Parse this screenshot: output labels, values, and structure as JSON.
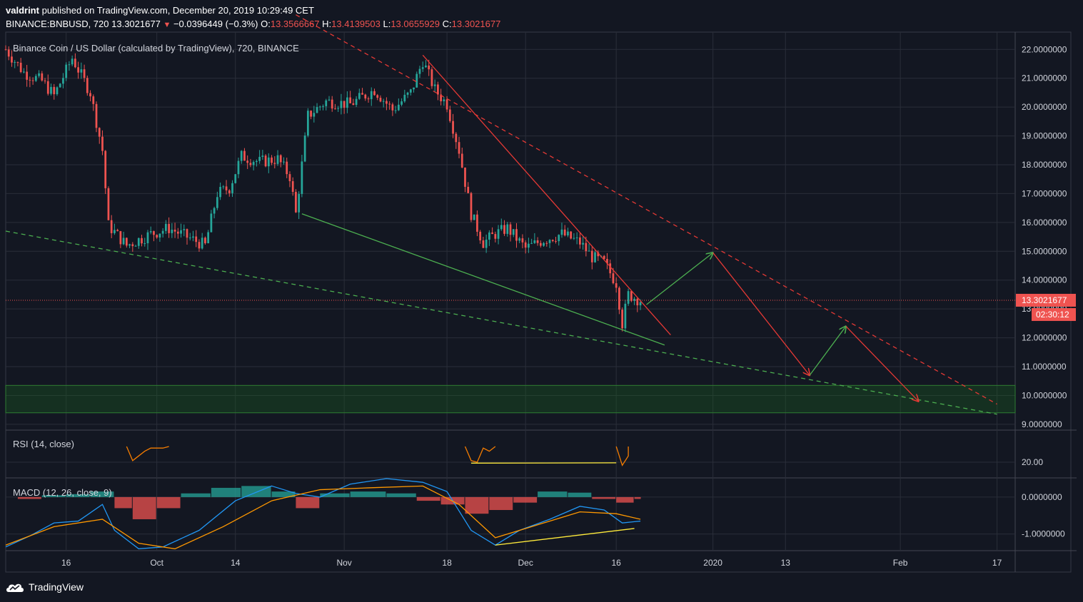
{
  "header": {
    "author": "valdrint",
    "published": "published on TradingView.com, December 20, 2019 10:29:49 CET",
    "symbol": "BINANCE:BNBUSD, 720",
    "last": "13.3021677",
    "change_arrow": "▼",
    "change": "−0.0396449 (−0.3%)",
    "o_label": "O:",
    "o_value": "13.3566667",
    "h_label": "H:",
    "h_value": "13.4139503",
    "l_label": "L:",
    "l_value": "13.0655929",
    "c_label": "C:",
    "c_value": "13.3021677"
  },
  "brand": {
    "name": "TradingView",
    "icon": "tradingview-cloud-icon"
  },
  "colors": {
    "background": "#131722",
    "grid": "#2a2e39",
    "up": "#26a69a",
    "down": "#ef5350",
    "trend_red": "#e53935",
    "trend_green": "#4caf50",
    "arrow_green": "#4caf50",
    "rsi_line": "#f57c00",
    "divergence": "#ffeb3b",
    "zone": "#1b5e20",
    "macd_line": "#2196f3",
    "signal_line": "#ff9800"
  },
  "chart_data": [
    {
      "type": "candlestick",
      "title": "Binance Coin / US Dollar (calculated by TradingView), 720, BINANCE",
      "ylim": [
        8.8,
        22.6
      ],
      "y_ticks": [
        "22.0000000",
        "21.0000000",
        "20.0000000",
        "19.0000000",
        "18.0000000",
        "17.0000000",
        "16.0000000",
        "15.0000000",
        "14.0000000",
        "13.0000000",
        "12.0000000",
        "11.0000000",
        "10.0000000",
        "9.0000000"
      ],
      "y_tick_values": [
        22,
        21,
        20,
        19,
        18,
        17,
        16,
        15,
        14,
        13,
        12,
        11,
        10,
        9
      ],
      "x_ticks": [
        {
          "label": "16",
          "date": "2019-09-16"
        },
        {
          "label": "Oct",
          "date": "2019-10-01"
        },
        {
          "label": "14",
          "date": "2019-10-14"
        },
        {
          "label": "Nov",
          "date": "2019-11-01"
        },
        {
          "label": "18",
          "date": "2019-11-18"
        },
        {
          "label": "Dec",
          "date": "2019-12-01"
        },
        {
          "label": "16",
          "date": "2019-12-16"
        },
        {
          "label": "2020",
          "date": "2020-01-01"
        },
        {
          "label": "13",
          "date": "2020-01-13"
        },
        {
          "label": "Feb",
          "date": "2020-02-01"
        },
        {
          "label": "17",
          "date": "2020-02-17"
        }
      ],
      "xlim": [
        "2019-09-06",
        "2020-02-20"
      ],
      "last_price_label": "13.3021677",
      "countdown_label": "02:30:12",
      "last_price": 13.3021677,
      "path_closes": [
        {
          "date": "2019-09-06",
          "close": 22.0
        },
        {
          "date": "2019-09-09",
          "close": 21.2
        },
        {
          "date": "2019-09-12",
          "close": 20.9
        },
        {
          "date": "2019-09-14",
          "close": 20.4
        },
        {
          "date": "2019-09-17",
          "close": 21.7
        },
        {
          "date": "2019-09-20",
          "close": 20.5
        },
        {
          "date": "2019-09-22",
          "close": 18.5
        },
        {
          "date": "2019-09-23",
          "close": 15.9
        },
        {
          "date": "2019-09-26",
          "close": 15.2
        },
        {
          "date": "2019-09-30",
          "close": 15.6
        },
        {
          "date": "2019-10-03",
          "close": 15.8
        },
        {
          "date": "2019-10-06",
          "close": 15.5
        },
        {
          "date": "2019-10-09",
          "close": 15.2
        },
        {
          "date": "2019-10-11",
          "close": 17.0
        },
        {
          "date": "2019-10-13",
          "close": 17.2
        },
        {
          "date": "2019-10-15",
          "close": 18.3
        },
        {
          "date": "2019-10-18",
          "close": 18.1
        },
        {
          "date": "2019-10-21",
          "close": 18.2
        },
        {
          "date": "2019-10-23",
          "close": 17.6
        },
        {
          "date": "2019-10-24",
          "close": 16.3
        },
        {
          "date": "2019-10-26",
          "close": 19.7
        },
        {
          "date": "2019-10-29",
          "close": 20.2
        },
        {
          "date": "2019-11-02",
          "close": 20.1
        },
        {
          "date": "2019-11-06",
          "close": 20.6
        },
        {
          "date": "2019-11-09",
          "close": 19.9
        },
        {
          "date": "2019-11-12",
          "close": 20.5
        },
        {
          "date": "2019-11-14",
          "close": 21.6
        },
        {
          "date": "2019-11-16",
          "close": 20.6
        },
        {
          "date": "2019-11-18",
          "close": 20.1
        },
        {
          "date": "2019-11-20",
          "close": 18.5
        },
        {
          "date": "2019-11-22",
          "close": 16.3
        },
        {
          "date": "2019-11-24",
          "close": 15.3
        },
        {
          "date": "2019-11-26",
          "close": 15.6
        },
        {
          "date": "2019-11-28",
          "close": 15.8
        },
        {
          "date": "2019-12-01",
          "close": 15.1
        },
        {
          "date": "2019-12-04",
          "close": 15.4
        },
        {
          "date": "2019-12-07",
          "close": 15.6
        },
        {
          "date": "2019-12-10",
          "close": 15.3
        },
        {
          "date": "2019-12-12",
          "close": 14.8
        },
        {
          "date": "2019-12-14",
          "close": 14.6
        },
        {
          "date": "2019-12-16",
          "close": 13.9
        },
        {
          "date": "2019-12-17",
          "close": 12.5
        },
        {
          "date": "2019-12-18",
          "close": 13.5
        },
        {
          "date": "2019-12-20",
          "close": 13.3
        }
      ],
      "support_zone": {
        "low": 9.4,
        "high": 10.35
      },
      "lines": [
        {
          "name": "upper-trend-dashed",
          "style": "dashed",
          "color": "#e53935",
          "from": {
            "date": "2019-10-24",
            "value": 23.2
          },
          "to": {
            "date": "2020-02-17",
            "value": 9.7
          }
        },
        {
          "name": "upper-trend-solid",
          "style": "solid",
          "color": "#e53935",
          "from": {
            "date": "2019-11-14",
            "value": 21.8
          },
          "to": {
            "date": "2019-12-25",
            "value": 12.1
          }
        },
        {
          "name": "lower-trend-solid",
          "style": "solid",
          "color": "#4caf50",
          "from": {
            "date": "2019-10-25",
            "value": 16.3
          },
          "to": {
            "date": "2019-12-24",
            "value": 11.75
          }
        },
        {
          "name": "lower-trend-dashed",
          "style": "dashed",
          "color": "#4caf50",
          "from": {
            "date": "2019-09-06",
            "value": 15.7
          },
          "to": {
            "date": "2020-02-17",
            "value": 9.35
          }
        }
      ],
      "projection_arrows": [
        {
          "color": "#4caf50",
          "from": {
            "date": "2019-12-21",
            "value": 13.15
          },
          "to": {
            "date": "2020-01-01",
            "value": 14.95
          }
        },
        {
          "color": "#e53935",
          "from": {
            "date": "2020-01-01",
            "value": 14.95
          },
          "to": {
            "date": "2020-01-17",
            "value": 10.7
          }
        },
        {
          "color": "#4caf50",
          "from": {
            "date": "2020-01-17",
            "value": 10.7
          },
          "to": {
            "date": "2020-01-23",
            "value": 12.4
          }
        },
        {
          "color": "#e53935",
          "from": {
            "date": "2020-01-23",
            "value": 12.4
          },
          "to": {
            "date": "2020-02-04",
            "value": 9.8
          }
        }
      ]
    },
    {
      "type": "line",
      "title": "RSI (14, close)",
      "y_ticks": [
        "20.00"
      ],
      "y_tick_values": [
        20
      ],
      "ylim": [
        10,
        40
      ],
      "series": [
        {
          "points": [
            {
              "date": "2019-09-26",
              "value": 30
            },
            {
              "date": "2019-09-27",
              "value": 21
            },
            {
              "date": "2019-09-28",
              "value": 24
            },
            {
              "date": "2019-09-29",
              "value": 27
            },
            {
              "date": "2019-09-30",
              "value": 29
            },
            {
              "date": "2019-10-02",
              "value": 29
            },
            {
              "date": "2019-10-03",
              "value": 30
            }
          ]
        },
        {
          "points": [
            {
              "date": "2019-11-21",
              "value": 30
            },
            {
              "date": "2019-11-22",
              "value": 21
            },
            {
              "date": "2019-11-23",
              "value": 20
            },
            {
              "date": "2019-11-24",
              "value": 29
            },
            {
              "date": "2019-11-25",
              "value": 27
            },
            {
              "date": "2019-11-26",
              "value": 30
            }
          ]
        },
        {
          "points": [
            {
              "date": "2019-12-16",
              "value": 30
            },
            {
              "date": "2019-12-17",
              "value": 18
            },
            {
              "date": "2019-12-18",
              "value": 24
            },
            {
              "date": "2019-12-18",
              "value": 30
            }
          ]
        }
      ],
      "divergence": {
        "from": {
          "date": "2019-11-22",
          "value": 19.4
        },
        "to": {
          "date": "2019-12-16",
          "value": 19.6
        }
      }
    },
    {
      "type": "bar",
      "title": "MACD (12, 26, close, 9)",
      "y_ticks": [
        "0.0000000",
        "-1.0000000"
      ],
      "y_tick_values": [
        0,
        -1
      ],
      "ylim": [
        -1.45,
        0.5
      ],
      "macd": [
        {
          "date": "2019-09-06",
          "value": -1.35
        },
        {
          "date": "2019-09-10",
          "value": -1.05
        },
        {
          "date": "2019-09-14",
          "value": -0.7
        },
        {
          "date": "2019-09-18",
          "value": -0.65
        },
        {
          "date": "2019-09-22",
          "value": -0.2
        },
        {
          "date": "2019-09-24",
          "value": -0.9
        },
        {
          "date": "2019-09-28",
          "value": -1.4
        },
        {
          "date": "2019-10-02",
          "value": -1.35
        },
        {
          "date": "2019-10-08",
          "value": -0.9
        },
        {
          "date": "2019-10-14",
          "value": -0.1
        },
        {
          "date": "2019-10-20",
          "value": 0.3
        },
        {
          "date": "2019-10-24",
          "value": 0.1
        },
        {
          "date": "2019-10-28",
          "value": 0.0
        },
        {
          "date": "2019-11-02",
          "value": 0.35
        },
        {
          "date": "2019-11-08",
          "value": 0.5
        },
        {
          "date": "2019-11-14",
          "value": 0.4
        },
        {
          "date": "2019-11-18",
          "value": 0.15
        },
        {
          "date": "2019-11-22",
          "value": -0.9
        },
        {
          "date": "2019-11-26",
          "value": -1.3
        },
        {
          "date": "2019-11-30",
          "value": -0.9
        },
        {
          "date": "2019-12-05",
          "value": -0.6
        },
        {
          "date": "2019-12-10",
          "value": -0.25
        },
        {
          "date": "2019-12-14",
          "value": -0.35
        },
        {
          "date": "2019-12-17",
          "value": -0.7
        },
        {
          "date": "2019-12-20",
          "value": -0.65
        }
      ],
      "signal": [
        {
          "date": "2019-09-06",
          "value": -1.3
        },
        {
          "date": "2019-09-14",
          "value": -0.8
        },
        {
          "date": "2019-09-22",
          "value": -0.6
        },
        {
          "date": "2019-09-28",
          "value": -1.25
        },
        {
          "date": "2019-10-04",
          "value": -1.4
        },
        {
          "date": "2019-10-12",
          "value": -0.8
        },
        {
          "date": "2019-10-20",
          "value": -0.1
        },
        {
          "date": "2019-10-28",
          "value": 0.2
        },
        {
          "date": "2019-11-05",
          "value": 0.25
        },
        {
          "date": "2019-11-14",
          "value": 0.3
        },
        {
          "date": "2019-11-20",
          "value": -0.2
        },
        {
          "date": "2019-11-26",
          "value": -1.1
        },
        {
          "date": "2019-12-02",
          "value": -0.8
        },
        {
          "date": "2019-12-10",
          "value": -0.4
        },
        {
          "date": "2019-12-16",
          "value": -0.45
        },
        {
          "date": "2019-12-20",
          "value": -0.6
        }
      ],
      "histogram": [
        {
          "date": "2019-09-08",
          "value": -0.05
        },
        {
          "date": "2019-09-12",
          "value": 0.05
        },
        {
          "date": "2019-09-16",
          "value": 0.08
        },
        {
          "date": "2019-09-20",
          "value": 0.15
        },
        {
          "date": "2019-09-24",
          "value": -0.3
        },
        {
          "date": "2019-09-27",
          "value": -0.6
        },
        {
          "date": "2019-10-01",
          "value": -0.3
        },
        {
          "date": "2019-10-05",
          "value": 0.1
        },
        {
          "date": "2019-10-10",
          "value": 0.25
        },
        {
          "date": "2019-10-15",
          "value": 0.3
        },
        {
          "date": "2019-10-20",
          "value": 0.15
        },
        {
          "date": "2019-10-24",
          "value": -0.3
        },
        {
          "date": "2019-10-28",
          "value": 0.1
        },
        {
          "date": "2019-11-02",
          "value": 0.15
        },
        {
          "date": "2019-11-08",
          "value": 0.1
        },
        {
          "date": "2019-11-13",
          "value": -0.1
        },
        {
          "date": "2019-11-17",
          "value": -0.2
        },
        {
          "date": "2019-11-21",
          "value": -0.45
        },
        {
          "date": "2019-11-25",
          "value": -0.35
        },
        {
          "date": "2019-11-29",
          "value": -0.15
        },
        {
          "date": "2019-12-03",
          "value": 0.15
        },
        {
          "date": "2019-12-08",
          "value": 0.12
        },
        {
          "date": "2019-12-12",
          "value": -0.05
        },
        {
          "date": "2019-12-16",
          "value": -0.15
        },
        {
          "date": "2019-12-19",
          "value": -0.05
        }
      ],
      "divergence": {
        "from": {
          "date": "2019-11-26",
          "value": -1.3
        },
        "to": {
          "date": "2019-12-19",
          "value": -0.85
        }
      }
    }
  ]
}
